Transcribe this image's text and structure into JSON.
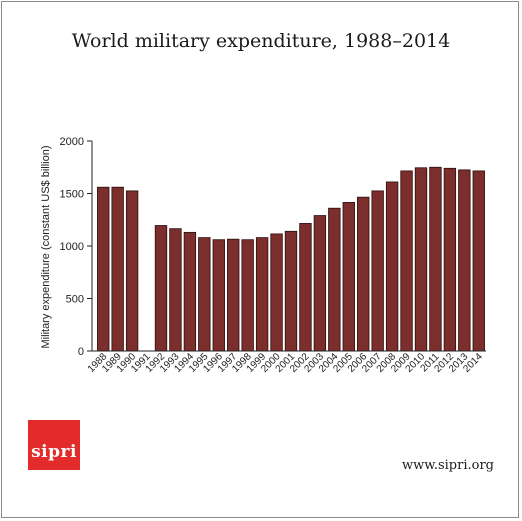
{
  "title": "World military expenditure, 1988–2014",
  "brand": {
    "logo_text": "sipri",
    "url": "www.sipri.org",
    "logo_color": "#e32b2b"
  },
  "colors": {
    "bar_fill": "#7b2e2b",
    "bar_stroke": "#2b0e0d",
    "axis": "#222222"
  },
  "chart_data": {
    "type": "bar",
    "title": "World military expenditure, 1988–2014",
    "ylabel": "Military expenditure (constant US$ billion)",
    "xlabel": "",
    "ylim": [
      0,
      2000
    ],
    "yticks": [
      0,
      500,
      1000,
      1500,
      2000
    ],
    "yticks_label": [
      "0",
      "500",
      "1000",
      "1500",
      "2000"
    ],
    "grid": false,
    "categories": [
      "1988",
      "1989",
      "1990",
      "1991",
      "1992",
      "1993",
      "1994",
      "1995",
      "1996",
      "1997",
      "1998",
      "1999",
      "2000",
      "2001",
      "2002",
      "2003",
      "2004",
      "2005",
      "2006",
      "2007",
      "2008",
      "2009",
      "2010",
      "2011",
      "2012",
      "2013",
      "2014"
    ],
    "values": [
      1560,
      1560,
      1525,
      null,
      1195,
      1165,
      1130,
      1080,
      1060,
      1065,
      1060,
      1080,
      1115,
      1140,
      1215,
      1290,
      1360,
      1415,
      1465,
      1525,
      1610,
      1715,
      1745,
      1750,
      1740,
      1725,
      1715
    ]
  }
}
